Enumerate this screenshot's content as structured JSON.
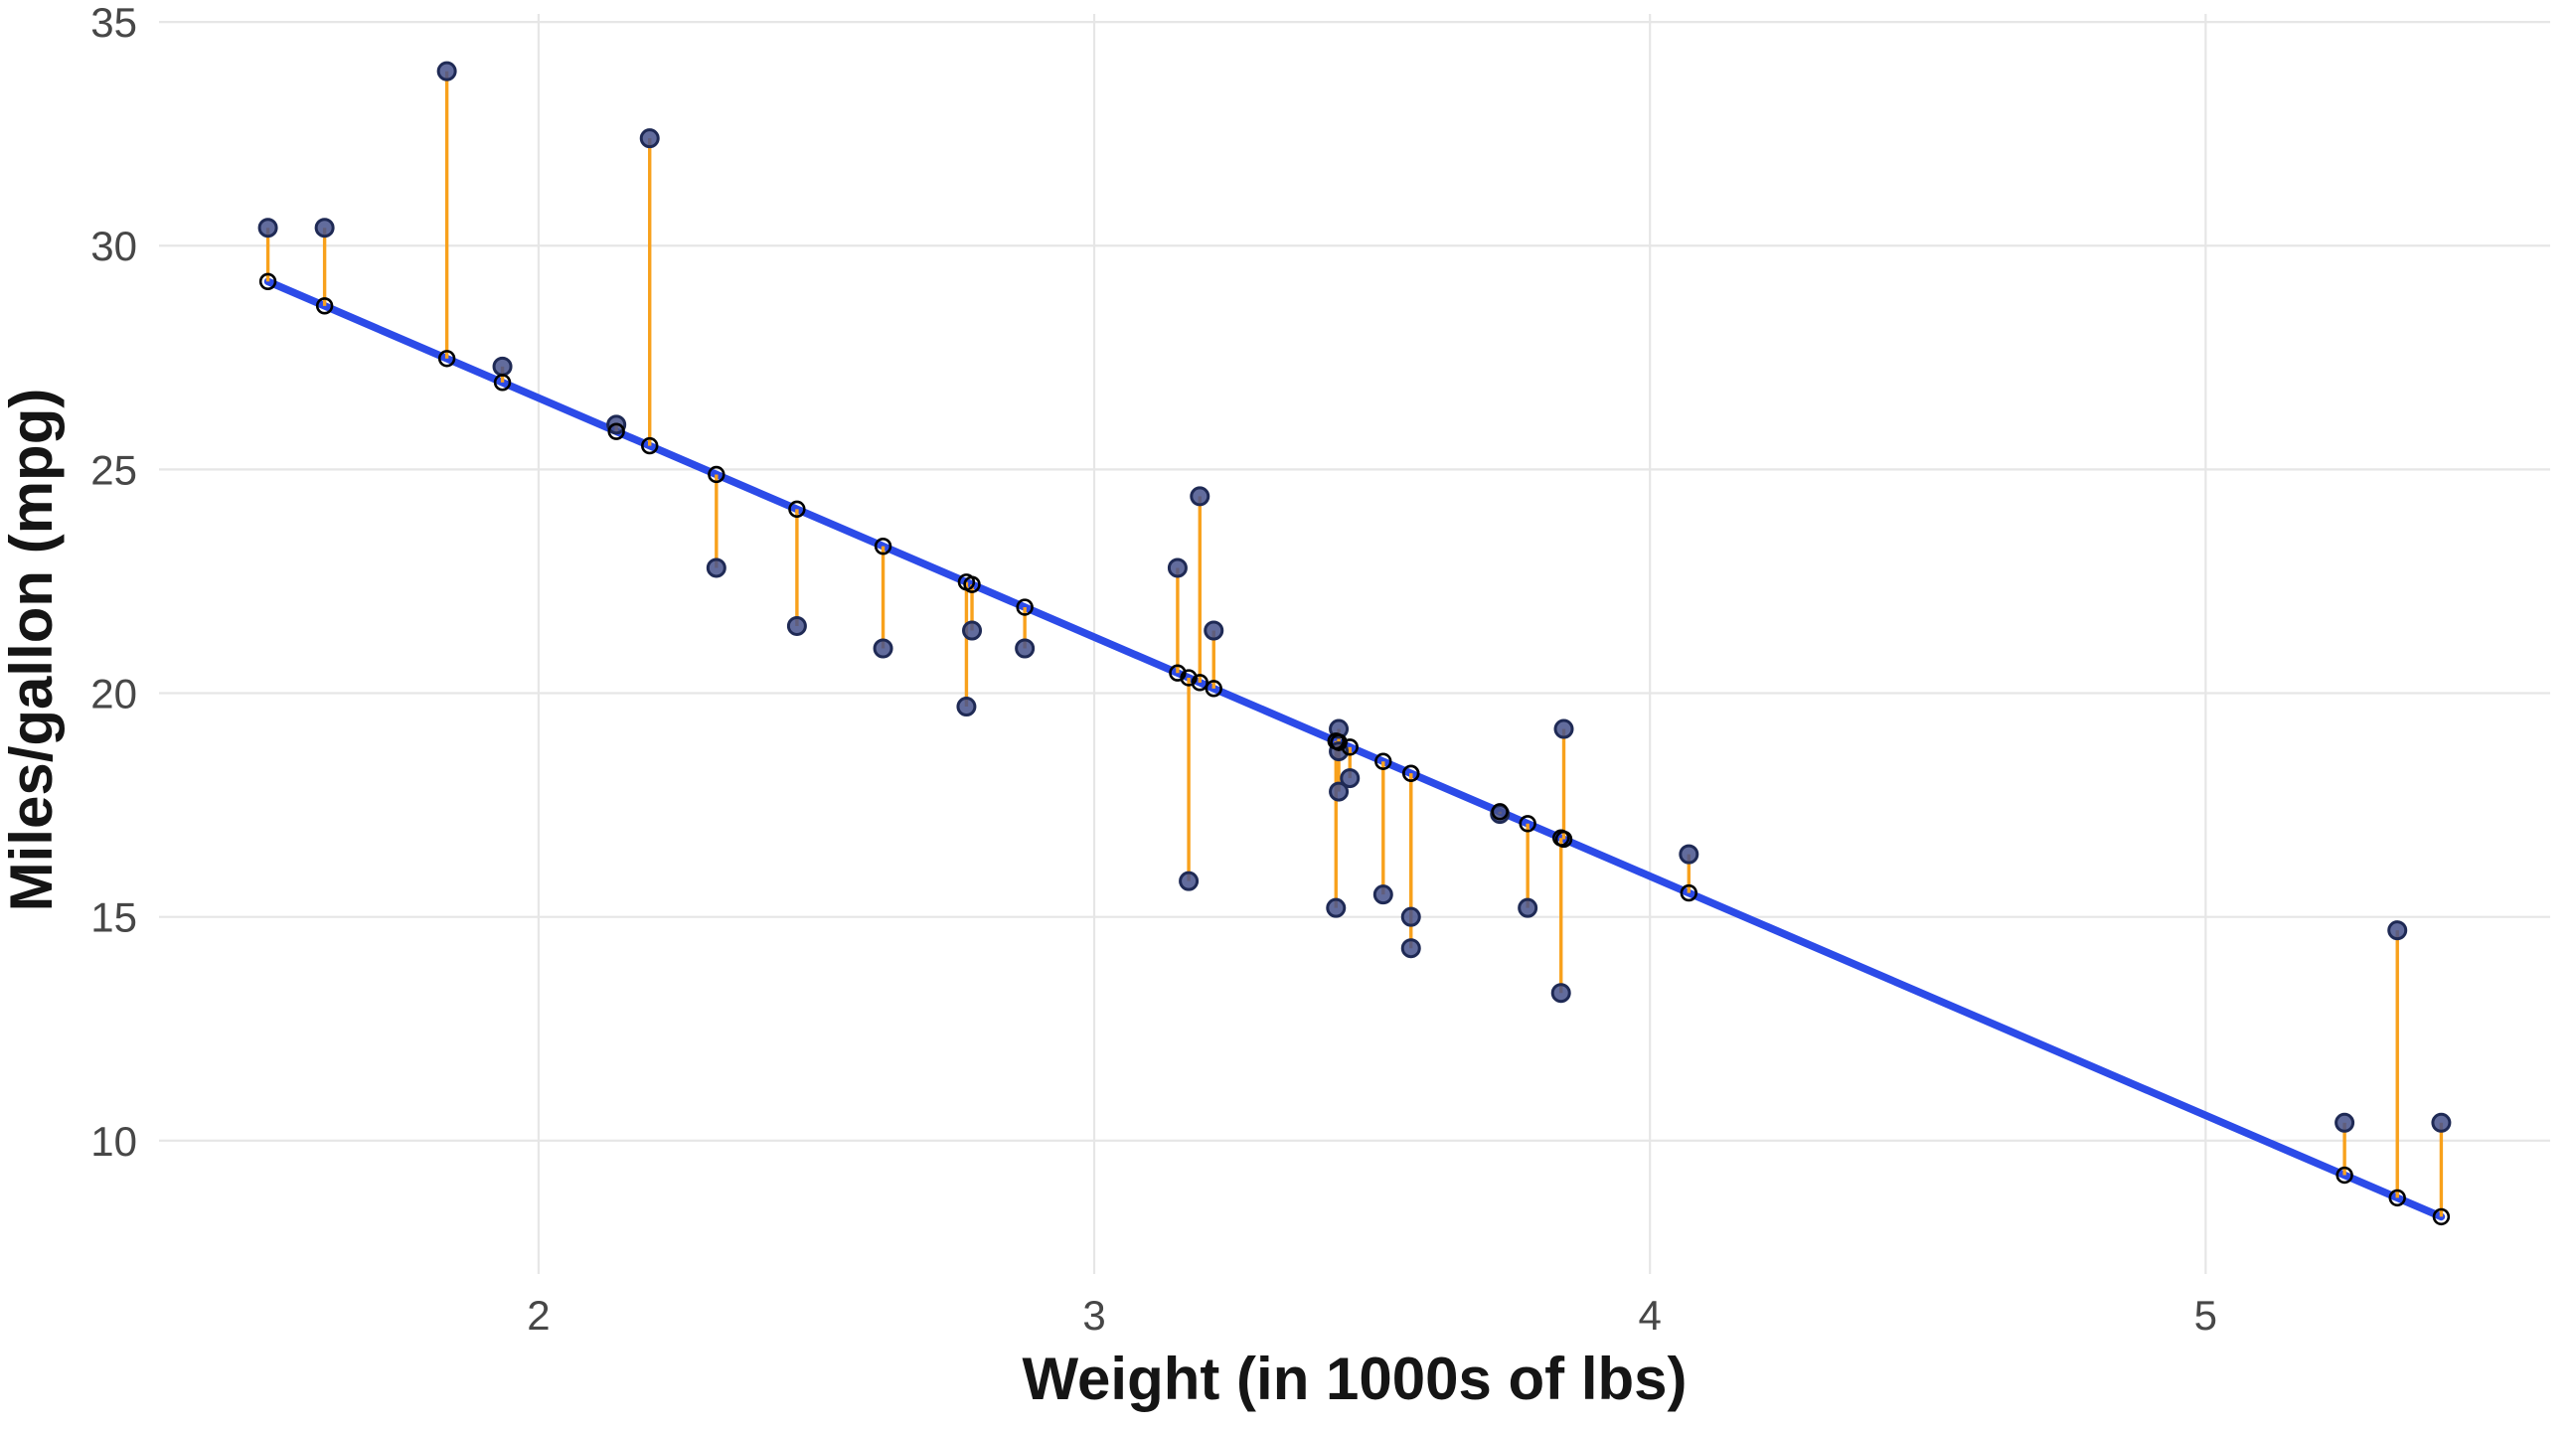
{
  "figure": {
    "background": "#FFFFFF"
  },
  "chart_data": {
    "type": "scatter",
    "title": "",
    "xlabel": "Weight (in 1000s of lbs)",
    "ylabel": "Miles/gallon (mpg)",
    "x_ticks": [
      "2",
      "3",
      "4",
      "5"
    ],
    "x_tick_values": [
      2,
      3,
      4,
      5
    ],
    "y_ticks": [
      "10",
      "15",
      "20",
      "25",
      "30",
      "35"
    ],
    "y_tick_values": [
      10,
      15,
      20,
      25,
      30,
      35
    ],
    "xlim": [
      1.317,
      5.62
    ],
    "ylim": [
      7.02,
      35.18
    ],
    "grid": "major-only",
    "legend": "none",
    "points": [
      {
        "wt": 2.62,
        "mpg": 21.0
      },
      {
        "wt": 2.875,
        "mpg": 21.0
      },
      {
        "wt": 2.32,
        "mpg": 22.8
      },
      {
        "wt": 3.215,
        "mpg": 21.4
      },
      {
        "wt": 3.44,
        "mpg": 18.7
      },
      {
        "wt": 3.46,
        "mpg": 18.1
      },
      {
        "wt": 3.57,
        "mpg": 14.3
      },
      {
        "wt": 3.19,
        "mpg": 24.4
      },
      {
        "wt": 3.15,
        "mpg": 22.8
      },
      {
        "wt": 3.44,
        "mpg": 19.2
      },
      {
        "wt": 3.44,
        "mpg": 17.8
      },
      {
        "wt": 4.07,
        "mpg": 16.4
      },
      {
        "wt": 3.73,
        "mpg": 17.3
      },
      {
        "wt": 3.78,
        "mpg": 15.2
      },
      {
        "wt": 5.25,
        "mpg": 10.4
      },
      {
        "wt": 5.424,
        "mpg": 10.4
      },
      {
        "wt": 5.345,
        "mpg": 14.7
      },
      {
        "wt": 2.2,
        "mpg": 32.4
      },
      {
        "wt": 1.615,
        "mpg": 30.4
      },
      {
        "wt": 1.835,
        "mpg": 33.9
      },
      {
        "wt": 2.465,
        "mpg": 21.5
      },
      {
        "wt": 3.52,
        "mpg": 15.5
      },
      {
        "wt": 3.435,
        "mpg": 15.2
      },
      {
        "wt": 3.84,
        "mpg": 13.3
      },
      {
        "wt": 3.845,
        "mpg": 19.2
      },
      {
        "wt": 1.935,
        "mpg": 27.3
      },
      {
        "wt": 2.14,
        "mpg": 26.0
      },
      {
        "wt": 1.513,
        "mpg": 30.4
      },
      {
        "wt": 3.17,
        "mpg": 15.8
      },
      {
        "wt": 2.77,
        "mpg": 19.7
      },
      {
        "wt": 3.57,
        "mpg": 15.0
      },
      {
        "wt": 2.78,
        "mpg": 21.4
      }
    ],
    "regression_line": {
      "intercept": 37.285,
      "slope": -5.344,
      "x_start": 1.513,
      "x_end": 5.424
    },
    "residuals_shown": true,
    "fitted_points_shown": true
  },
  "style": {
    "regression_line_color": "#2C4BE8",
    "residual_segment_color": "#F8A11C",
    "data_point_fill": "#46528C",
    "data_point_stroke": "#1F2A55",
    "fitted_point_stroke": "#000000",
    "gridline_color": "#E6E6E6",
    "tick_label_color": "#474747",
    "axis_title_color": "#151515"
  }
}
